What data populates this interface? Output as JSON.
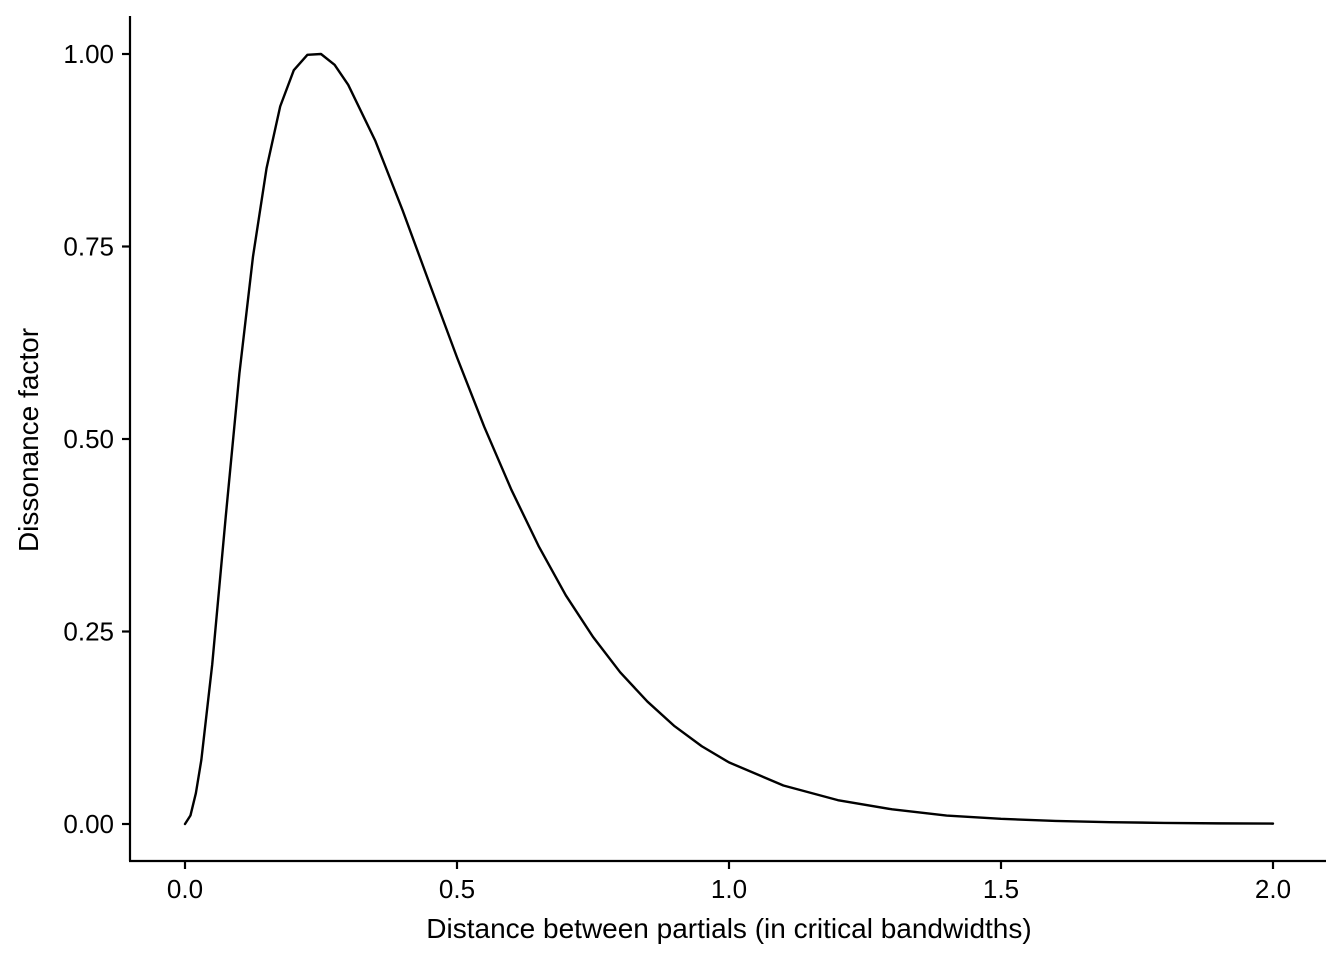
{
  "chart_data": {
    "type": "line",
    "title": "",
    "xlabel": "Distance between partials (in critical bandwidths)",
    "ylabel": "Dissonance factor",
    "xlim": [
      -0.1,
      2.1
    ],
    "ylim": [
      -0.05,
      1.05
    ],
    "x_ticks": [
      0.0,
      0.5,
      1.0,
      1.5,
      2.0
    ],
    "x_tick_labels": [
      "0.0",
      "0.5",
      "1.0",
      "1.5",
      "2.0"
    ],
    "y_ticks": [
      0.0,
      0.25,
      0.5,
      0.75,
      1.0
    ],
    "y_tick_labels": [
      "0.00",
      "0.25",
      "0.50",
      "0.75",
      "1.00"
    ],
    "grid": false,
    "legend": "none",
    "line_color": "#000000",
    "series": [
      {
        "x": [
          0.0,
          0.01,
          0.02,
          0.03,
          0.05,
          0.075,
          0.1,
          0.125,
          0.15,
          0.175,
          0.2,
          0.225,
          0.25,
          0.275,
          0.3,
          0.35,
          0.4,
          0.45,
          0.5,
          0.55,
          0.6,
          0.65,
          0.7,
          0.75,
          0.8,
          0.85,
          0.9,
          0.95,
          1.0,
          1.1,
          1.2,
          1.3,
          1.4,
          1.5,
          1.6,
          1.7,
          1.8,
          1.9,
          2.0
        ],
        "values": [
          0.0,
          0.011,
          0.04,
          0.083,
          0.207,
          0.4,
          0.585,
          0.737,
          0.852,
          0.932,
          0.979,
          0.999,
          1.0,
          0.986,
          0.96,
          0.887,
          0.797,
          0.701,
          0.606,
          0.516,
          0.434,
          0.361,
          0.297,
          0.243,
          0.197,
          0.159,
          0.127,
          0.101,
          0.08,
          0.05,
          0.031,
          0.019,
          0.011,
          0.0067,
          0.004,
          0.0024,
          0.0014,
          0.0008,
          0.0005
        ]
      }
    ]
  }
}
